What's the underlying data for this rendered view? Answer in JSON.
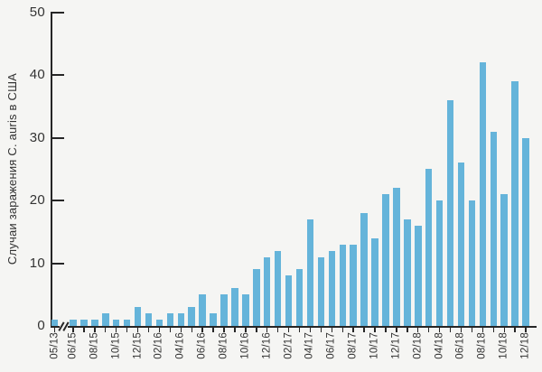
{
  "chart_data": {
    "type": "bar",
    "title": "",
    "xlabel": "",
    "ylabel": "Случаи заражения C. auris в США",
    "ylim": [
      0,
      50
    ],
    "y_ticks": [
      0,
      10,
      20,
      30,
      40,
      50
    ],
    "grid": false,
    "legend": false,
    "x_axis_break_between": [
      "05/13",
      "06/15"
    ],
    "categories": [
      "05/13",
      "06/15",
      "07/15",
      "08/15",
      "09/15",
      "10/15",
      "11/15",
      "12/15",
      "01/16",
      "02/16",
      "03/16",
      "04/16",
      "05/16",
      "06/16",
      "07/16",
      "08/16",
      "09/16",
      "10/16",
      "11/16",
      "12/16",
      "01/17",
      "02/17",
      "03/17",
      "04/17",
      "05/17",
      "06/17",
      "07/17",
      "08/17",
      "09/17",
      "10/17",
      "11/17",
      "12/17",
      "01/18",
      "02/18",
      "03/18",
      "04/18",
      "05/18",
      "06/18",
      "07/18",
      "08/18",
      "09/18",
      "10/18",
      "11/18",
      "12/18"
    ],
    "values": [
      1,
      1,
      1,
      1,
      2,
      1,
      1,
      3,
      2,
      1,
      2,
      2,
      3,
      5,
      2,
      5,
      6,
      5,
      9,
      11,
      12,
      8,
      9,
      17,
      11,
      12,
      13,
      13,
      18,
      14,
      21,
      22,
      17,
      16,
      25,
      20,
      36,
      26,
      20,
      42,
      31,
      21,
      39,
      30
    ],
    "shown_x_labels": [
      "05/13",
      "06/15",
      "08/15",
      "10/15",
      "12/15",
      "02/16",
      "04/16",
      "06/16",
      "08/16",
      "10/16",
      "12/16",
      "02/17",
      "04/17",
      "06/17",
      "08/17",
      "10/17",
      "12/17",
      "02/18",
      "04/18",
      "06/18",
      "08/18",
      "10/18",
      "12/18"
    ],
    "colors": {
      "background": "#f5f5f3",
      "bar": "#65b4da",
      "axis": "#262626",
      "text": "#333333"
    }
  }
}
